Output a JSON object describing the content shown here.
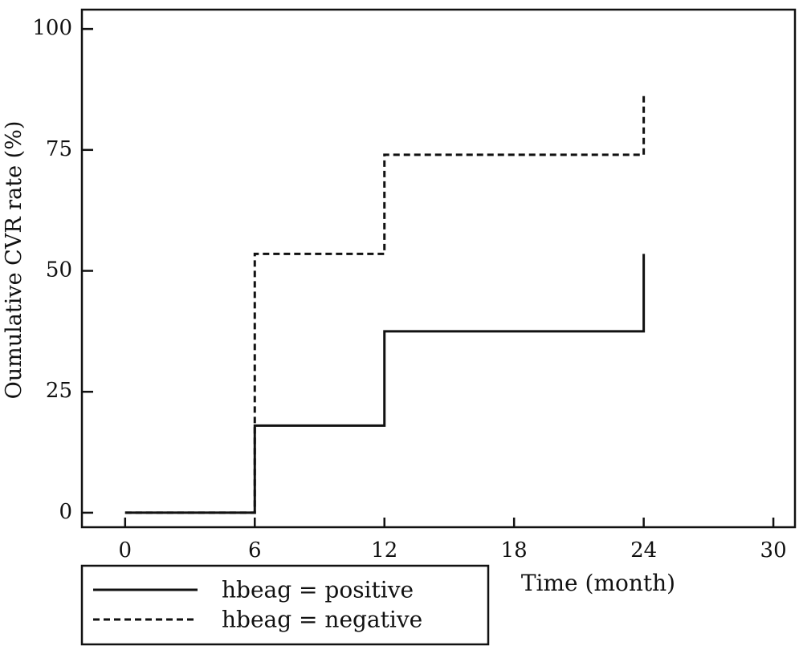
{
  "chart_data": {
    "type": "line",
    "step": true,
    "xlabel": "Time (month)",
    "ylabel": "Oumulative CVR rate (%)",
    "xlim": [
      -2,
      31
    ],
    "ylim": [
      -3,
      104
    ],
    "xticks": [
      0,
      6,
      12,
      18,
      24,
      30
    ],
    "yticks": [
      0,
      25,
      50,
      75,
      100
    ],
    "legend_position": "bottom-left",
    "series": [
      {
        "name": "hbeag = positive",
        "style": "solid",
        "color": "#111111",
        "x": [
          0,
          6,
          12,
          24
        ],
        "y": [
          0,
          18,
          37.5,
          53.5
        ]
      },
      {
        "name": "hbeag = negative",
        "style": "dashed",
        "color": "#111111",
        "x": [
          0,
          6,
          12,
          24
        ],
        "y": [
          0,
          53.5,
          74,
          86.5
        ]
      }
    ]
  }
}
